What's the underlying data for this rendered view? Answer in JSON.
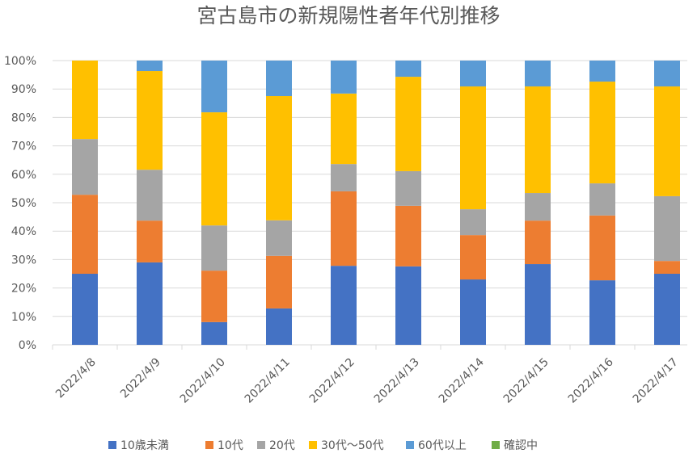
{
  "chart_data": {
    "type": "bar",
    "stacked": "percent",
    "title": "宮古島市の新規陽性者年代別推移",
    "xlabel": "",
    "ylabel": "",
    "ylim": [
      0,
      100
    ],
    "yticks": [
      "0%",
      "10%",
      "20%",
      "30%",
      "40%",
      "50%",
      "60%",
      "70%",
      "80%",
      "90%",
      "100%"
    ],
    "grid": true,
    "legend_position": "bottom",
    "categories": [
      "2022/4/8",
      "2022/4/9",
      "2022/4/10",
      "2022/4/11",
      "2022/4/12",
      "2022/4/13",
      "2022/4/14",
      "2022/4/15",
      "2022/4/16",
      "2022/4/17"
    ],
    "series": [
      {
        "name": "10歳未満",
        "color": "#4472C4",
        "values": [
          25.0,
          29.0,
          8.0,
          12.8,
          27.8,
          27.6,
          23.0,
          28.4,
          22.7,
          25.0
        ]
      },
      {
        "name": "10代",
        "color": "#ED7D31",
        "values": [
          27.8,
          14.7,
          18.1,
          18.5,
          26.2,
          21.3,
          15.6,
          15.3,
          22.8,
          4.5
        ]
      },
      {
        "name": "20代",
        "color": "#A5A5A5",
        "values": [
          19.6,
          17.9,
          15.9,
          12.5,
          9.6,
          12.2,
          9.1,
          9.7,
          11.3,
          22.8
        ]
      },
      {
        "name": "30代～50代",
        "color": "#FFC000",
        "values": [
          27.6,
          34.7,
          39.8,
          43.7,
          24.8,
          33.2,
          43.2,
          37.5,
          35.8,
          38.6
        ]
      },
      {
        "name": "60代以上",
        "color": "#5B9BD5",
        "values": [
          0,
          3.7,
          18.2,
          12.5,
          11.6,
          5.7,
          9.1,
          9.1,
          7.4,
          9.1
        ]
      },
      {
        "name": "確認中",
        "color": "#70AD47",
        "values": [
          0,
          0,
          0,
          0,
          0,
          0,
          0,
          0,
          0,
          0
        ]
      }
    ]
  }
}
